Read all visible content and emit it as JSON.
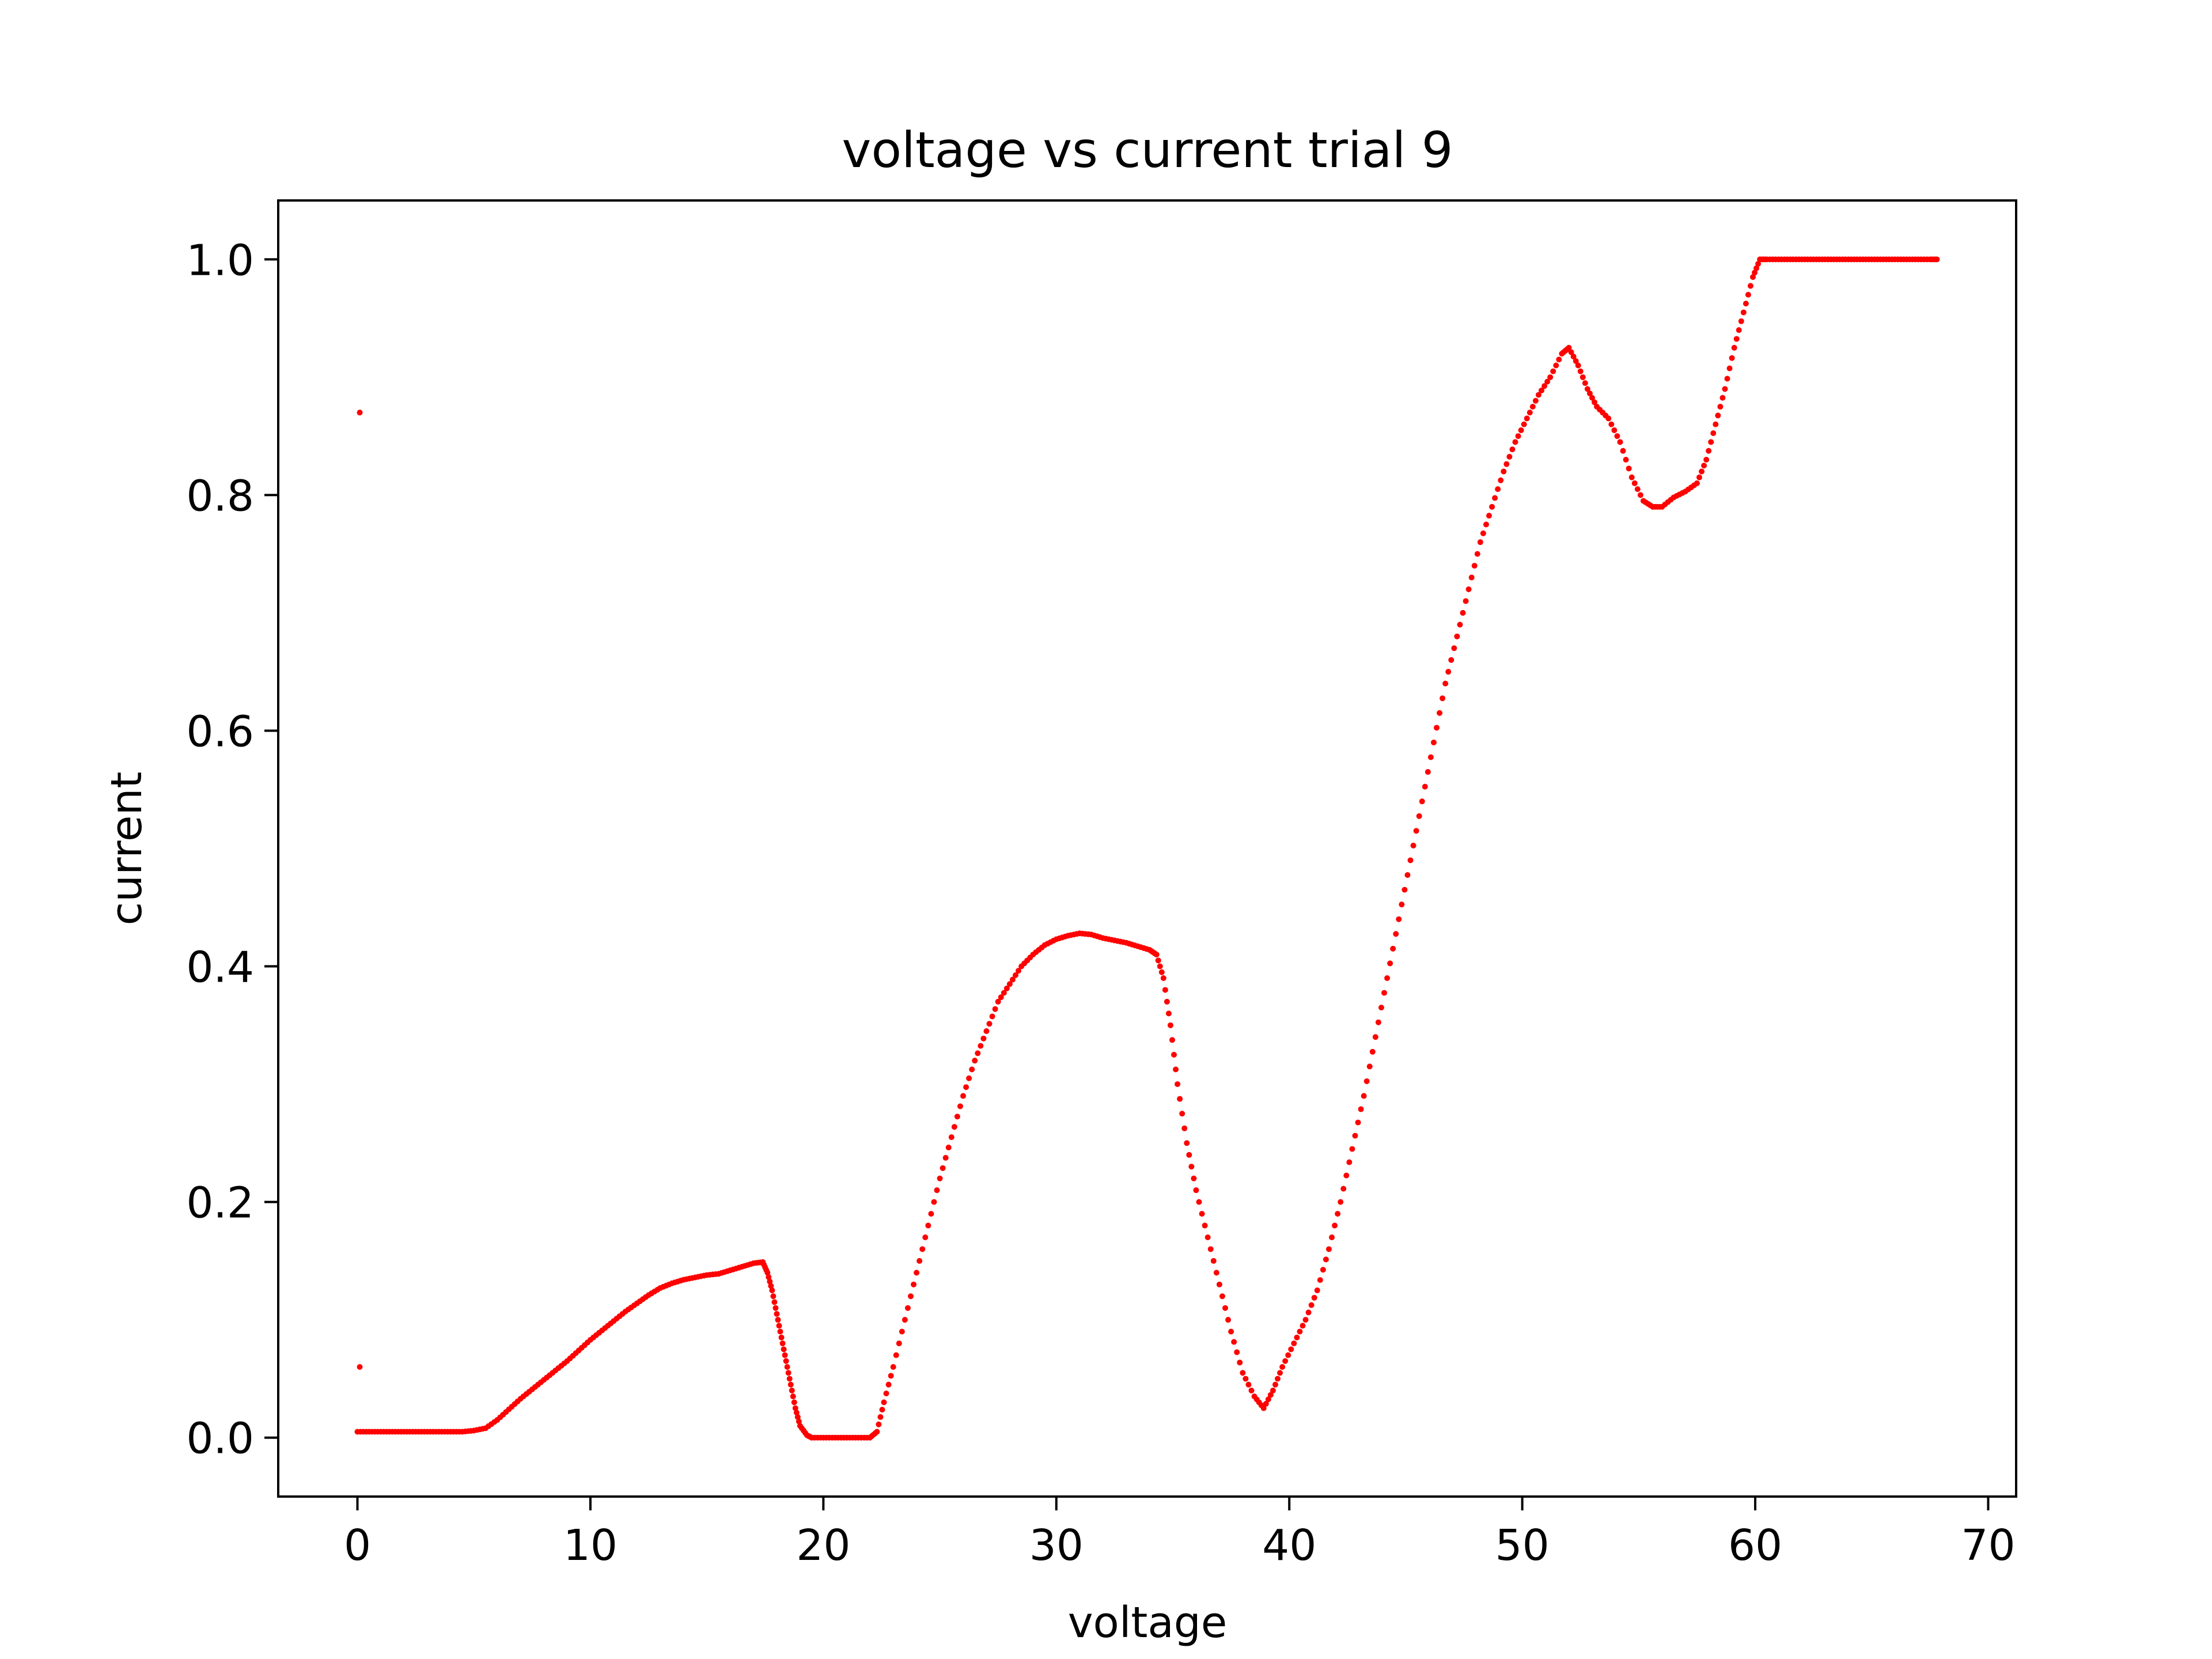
{
  "colors": {
    "points": "#ff0000",
    "axes": "#000000",
    "background": "#ffffff"
  },
  "chart_data": {
    "type": "scatter",
    "title": "voltage vs current trial 9",
    "xlabel": "voltage",
    "ylabel": "current",
    "xlim": [
      -3.4,
      71.2
    ],
    "ylim": [
      -0.05,
      1.05
    ],
    "xticks": [
      0,
      10,
      20,
      30,
      40,
      50,
      60,
      70
    ],
    "yticks": [
      0.0,
      0.2,
      0.4,
      0.6,
      0.8,
      1.0
    ],
    "xtick_labels": [
      "0",
      "10",
      "20",
      "30",
      "40",
      "50",
      "60",
      "70"
    ],
    "ytick_labels": [
      "0.0",
      "0.2",
      "0.4",
      "0.6",
      "0.8",
      "1.0"
    ],
    "grid": false,
    "legend": "none",
    "series": [
      {
        "color": "#ff0000",
        "points": [
          [
            0.1,
            0.87
          ],
          [
            0.1,
            0.06
          ],
          [
            0.0,
            0.005
          ],
          [
            0.5,
            0.005
          ],
          [
            1.0,
            0.005
          ],
          [
            1.5,
            0.005
          ],
          [
            2.0,
            0.005
          ],
          [
            2.5,
            0.005
          ],
          [
            3.0,
            0.005
          ],
          [
            3.5,
            0.005
          ],
          [
            4.0,
            0.005
          ],
          [
            4.5,
            0.005
          ],
          [
            5.0,
            0.006
          ],
          [
            5.5,
            0.008
          ],
          [
            6.0,
            0.015
          ],
          [
            6.5,
            0.024
          ],
          [
            7.0,
            0.033
          ],
          [
            7.5,
            0.041
          ],
          [
            8.0,
            0.049
          ],
          [
            8.5,
            0.057
          ],
          [
            9.0,
            0.065
          ],
          [
            9.5,
            0.074
          ],
          [
            10.0,
            0.083
          ],
          [
            10.5,
            0.091
          ],
          [
            11.0,
            0.099
          ],
          [
            11.5,
            0.107
          ],
          [
            12.0,
            0.114
          ],
          [
            12.5,
            0.121
          ],
          [
            13.0,
            0.127
          ],
          [
            13.5,
            0.131
          ],
          [
            14.0,
            0.134
          ],
          [
            14.5,
            0.136
          ],
          [
            15.0,
            0.138
          ],
          [
            15.5,
            0.139
          ],
          [
            16.0,
            0.142
          ],
          [
            16.5,
            0.145
          ],
          [
            17.0,
            0.148
          ],
          [
            17.4,
            0.149
          ],
          [
            17.6,
            0.14
          ],
          [
            17.8,
            0.125
          ],
          [
            18.0,
            0.105
          ],
          [
            18.2,
            0.085
          ],
          [
            18.4,
            0.065
          ],
          [
            18.6,
            0.045
          ],
          [
            18.8,
            0.025
          ],
          [
            19.0,
            0.01
          ],
          [
            19.3,
            0.002
          ],
          [
            19.5,
            0.0
          ],
          [
            20.0,
            0.0
          ],
          [
            20.5,
            0.0
          ],
          [
            21.0,
            0.0
          ],
          [
            21.5,
            0.0
          ],
          [
            22.0,
            0.0
          ],
          [
            22.3,
            0.005
          ],
          [
            22.6,
            0.03
          ],
          [
            23.0,
            0.06
          ],
          [
            23.5,
            0.1
          ],
          [
            24.0,
            0.14
          ],
          [
            24.5,
            0.18
          ],
          [
            25.0,
            0.22
          ],
          [
            25.5,
            0.255
          ],
          [
            26.0,
            0.29
          ],
          [
            26.5,
            0.32
          ],
          [
            27.0,
            0.345
          ],
          [
            27.5,
            0.37
          ],
          [
            28.0,
            0.385
          ],
          [
            28.5,
            0.4
          ],
          [
            29.0,
            0.41
          ],
          [
            29.5,
            0.418
          ],
          [
            30.0,
            0.423
          ],
          [
            30.5,
            0.426
          ],
          [
            31.0,
            0.428
          ],
          [
            31.5,
            0.427
          ],
          [
            32.0,
            0.424
          ],
          [
            32.5,
            0.422
          ],
          [
            33.0,
            0.42
          ],
          [
            33.5,
            0.417
          ],
          [
            34.0,
            0.414
          ],
          [
            34.3,
            0.41
          ],
          [
            34.6,
            0.39
          ],
          [
            34.9,
            0.35
          ],
          [
            35.2,
            0.3
          ],
          [
            35.6,
            0.25
          ],
          [
            36.0,
            0.21
          ],
          [
            36.5,
            0.17
          ],
          [
            37.0,
            0.13
          ],
          [
            37.5,
            0.09
          ],
          [
            38.0,
            0.055
          ],
          [
            38.5,
            0.035
          ],
          [
            38.9,
            0.025
          ],
          [
            39.3,
            0.04
          ],
          [
            39.7,
            0.06
          ],
          [
            40.2,
            0.08
          ],
          [
            40.7,
            0.1
          ],
          [
            41.2,
            0.125
          ],
          [
            41.7,
            0.16
          ],
          [
            42.2,
            0.2
          ],
          [
            42.7,
            0.245
          ],
          [
            43.2,
            0.29
          ],
          [
            43.7,
            0.34
          ],
          [
            44.2,
            0.39
          ],
          [
            44.7,
            0.44
          ],
          [
            45.2,
            0.49
          ],
          [
            45.7,
            0.54
          ],
          [
            46.2,
            0.59
          ],
          [
            46.7,
            0.64
          ],
          [
            47.2,
            0.68
          ],
          [
            47.7,
            0.72
          ],
          [
            48.2,
            0.76
          ],
          [
            48.7,
            0.79
          ],
          [
            49.2,
            0.82
          ],
          [
            49.7,
            0.845
          ],
          [
            50.2,
            0.865
          ],
          [
            50.7,
            0.885
          ],
          [
            51.2,
            0.9
          ],
          [
            51.7,
            0.92
          ],
          [
            52.0,
            0.925
          ],
          [
            52.4,
            0.91
          ],
          [
            52.8,
            0.89
          ],
          [
            53.2,
            0.875
          ],
          [
            53.7,
            0.865
          ],
          [
            54.2,
            0.845
          ],
          [
            54.7,
            0.815
          ],
          [
            55.2,
            0.795
          ],
          [
            55.6,
            0.79
          ],
          [
            56.0,
            0.79
          ],
          [
            56.5,
            0.798
          ],
          [
            57.0,
            0.803
          ],
          [
            57.5,
            0.81
          ],
          [
            57.9,
            0.83
          ],
          [
            58.3,
            0.86
          ],
          [
            58.7,
            0.89
          ],
          [
            59.1,
            0.925
          ],
          [
            59.5,
            0.955
          ],
          [
            59.9,
            0.985
          ],
          [
            60.2,
            1.0
          ],
          [
            60.5,
            1.0
          ],
          [
            61.0,
            1.0
          ],
          [
            61.5,
            1.0
          ],
          [
            62.0,
            1.0
          ],
          [
            62.5,
            1.0
          ],
          [
            63.0,
            1.0
          ],
          [
            63.5,
            1.0
          ],
          [
            64.0,
            1.0
          ],
          [
            64.5,
            1.0
          ],
          [
            65.0,
            1.0
          ],
          [
            65.5,
            1.0
          ],
          [
            66.0,
            1.0
          ],
          [
            66.5,
            1.0
          ],
          [
            67.0,
            1.0
          ],
          [
            67.5,
            1.0
          ],
          [
            67.8,
            1.0
          ]
        ]
      }
    ]
  }
}
